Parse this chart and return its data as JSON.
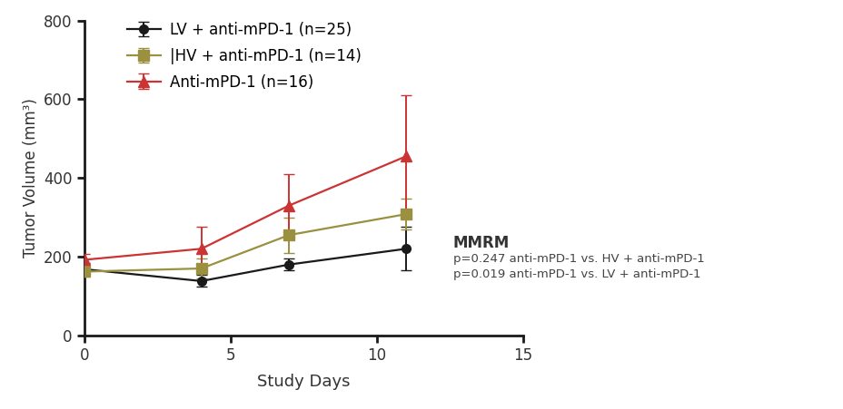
{
  "days": [
    0,
    4,
    7,
    11
  ],
  "lv_mean": [
    168,
    138,
    180,
    220
  ],
  "lv_err": [
    15,
    15,
    15,
    55
  ],
  "hv_mean": [
    162,
    170,
    255,
    308
  ],
  "hv_err": [
    12,
    25,
    45,
    40
  ],
  "anti_mean": [
    192,
    220,
    330,
    455
  ],
  "anti_err": [
    15,
    55,
    80,
    155
  ],
  "lv_color": "#1a1a1a",
  "hv_color": "#9a9040",
  "anti_color": "#cc3333",
  "lv_label": "LV + anti-mPD-1 (n=25)",
  "hv_label": "|HV + anti-mPD-1 (n=14)",
  "anti_label": "Anti-mPD-1 (n=16)",
  "xlabel": "Study Days",
  "ylabel": "Tumor Volume (mm³)",
  "ylim": [
    0,
    800
  ],
  "xlim": [
    0,
    15
  ],
  "yticks": [
    0,
    200,
    400,
    600,
    800
  ],
  "xticks": [
    0,
    5,
    10,
    15
  ],
  "mmrm_title": "MMRM",
  "mmrm_line1": "p=0.247 anti-mPD-1 vs. HV + anti-mPD-1",
  "mmrm_line2": "p=0.019 anti-mPD-1 vs. LV + anti-mPD-1",
  "bg_color": "#ffffff"
}
